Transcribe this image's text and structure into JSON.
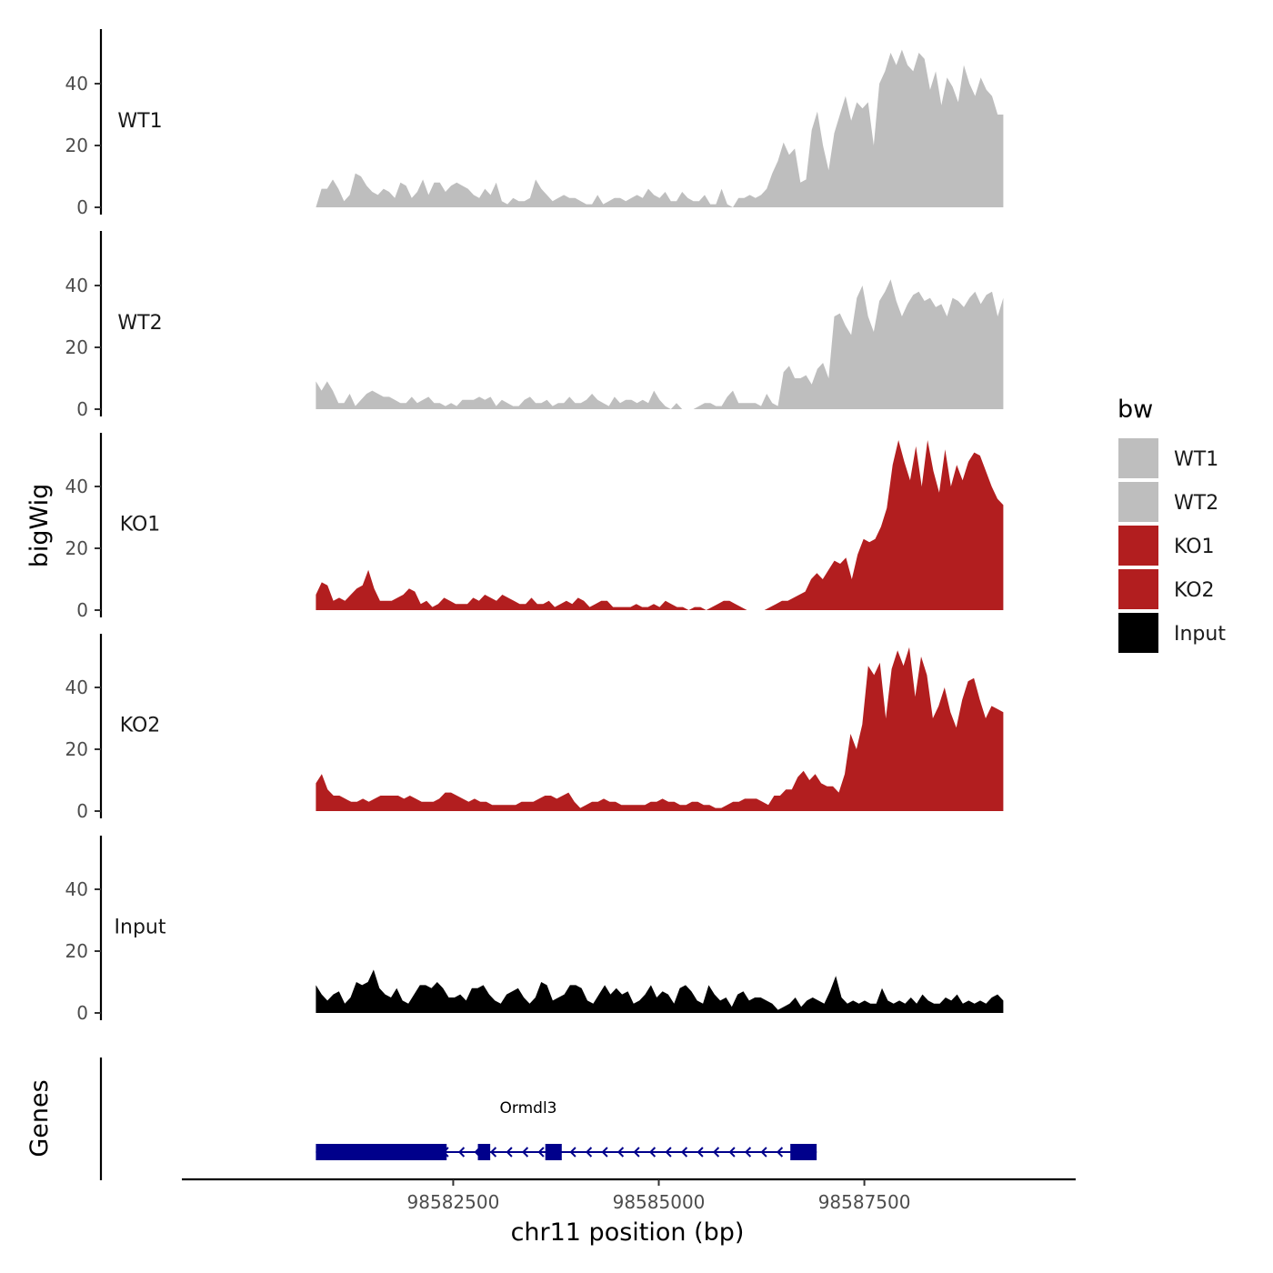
{
  "chart_data": {
    "type": "area",
    "title": "",
    "xlabel": "chr11 position (bp)",
    "ylabel": "bigWig",
    "genes_label": "Genes",
    "x_range": [
      98580830,
      98589190
    ],
    "xlim": [
      98579200,
      98590070
    ],
    "x_ticks": [
      98582500,
      98585000,
      98587500
    ],
    "x_tick_labels": [
      "98582500",
      "98585000",
      "98587500"
    ],
    "ylim": [
      0,
      58
    ],
    "y_ticks": [
      0,
      20,
      40
    ],
    "y_tick_labels": [
      "0",
      "20",
      "40"
    ],
    "series": [
      {
        "name": "WT1",
        "color": "#bebebe",
        "values": [
          0,
          6,
          6,
          9,
          6,
          2,
          4,
          11,
          10,
          7,
          5,
          4,
          6,
          5,
          3,
          8,
          7,
          3,
          5,
          9,
          4,
          8,
          8,
          5,
          7,
          8,
          7,
          6,
          4,
          3,
          6,
          4,
          8,
          2,
          1,
          3,
          2,
          2,
          3,
          9,
          6,
          4,
          2,
          3,
          4,
          3,
          3,
          2,
          1,
          1,
          4,
          1,
          2,
          3,
          3,
          2,
          3,
          4,
          3,
          6,
          4,
          3,
          5,
          2,
          2,
          5,
          3,
          2,
          2,
          4,
          1,
          1,
          6,
          1,
          0,
          3,
          3,
          4,
          3,
          4,
          6,
          11,
          15,
          21,
          17,
          19,
          8,
          9,
          25,
          31,
          20,
          12,
          24,
          30,
          36,
          28,
          34,
          32,
          34,
          20,
          40,
          44,
          50,
          46,
          51,
          46,
          44,
          50,
          48,
          38,
          44,
          33,
          42,
          39,
          34,
          46,
          40,
          36,
          42,
          38,
          36,
          30,
          30
        ]
      },
      {
        "name": "WT2",
        "color": "#bebebe",
        "values": [
          9,
          6,
          9,
          6,
          2,
          2,
          5,
          1,
          3,
          5,
          6,
          5,
          4,
          4,
          3,
          2,
          2,
          4,
          2,
          3,
          4,
          2,
          2,
          1,
          2,
          1,
          3,
          3,
          3,
          4,
          3,
          4,
          1,
          3,
          2,
          1,
          1,
          3,
          4,
          2,
          2,
          3,
          1,
          2,
          2,
          4,
          2,
          2,
          3,
          5,
          3,
          2,
          1,
          4,
          2,
          3,
          3,
          2,
          3,
          2,
          6,
          3,
          1,
          0,
          2,
          0,
          0,
          0,
          1,
          2,
          2,
          1,
          1,
          4,
          6,
          2,
          2,
          2,
          2,
          1,
          5,
          2,
          1,
          12,
          14,
          10,
          10,
          11,
          8,
          13,
          15,
          10,
          30,
          31,
          27,
          24,
          36,
          40,
          30,
          25,
          35,
          38,
          42,
          35,
          30,
          34,
          37,
          38,
          35,
          36,
          33,
          34,
          30,
          36,
          35,
          33,
          36,
          38,
          34,
          37,
          38,
          30,
          36
        ]
      },
      {
        "name": "KO1",
        "color": "#b21e1f",
        "values": [
          5,
          9,
          8,
          3,
          4,
          3,
          5,
          7,
          8,
          13,
          7,
          3,
          3,
          3,
          4,
          5,
          7,
          6,
          2,
          3,
          1,
          2,
          4,
          3,
          2,
          2,
          2,
          4,
          3,
          5,
          4,
          3,
          5,
          4,
          3,
          2,
          2,
          4,
          2,
          2,
          3,
          1,
          2,
          3,
          2,
          4,
          3,
          1,
          2,
          3,
          3,
          1,
          1,
          1,
          1,
          2,
          1,
          1,
          2,
          1,
          3,
          2,
          1,
          1,
          0,
          1,
          1,
          0,
          1,
          2,
          3,
          3,
          2,
          1,
          0,
          0,
          0,
          0,
          1,
          2,
          3,
          3,
          4,
          5,
          6,
          10,
          12,
          10,
          13,
          16,
          15,
          17,
          10,
          18,
          23,
          22,
          23,
          27,
          33,
          47,
          55,
          48,
          42,
          53,
          40,
          55,
          45,
          38,
          52,
          40,
          47,
          42,
          48,
          51,
          50,
          45,
          40,
          36,
          34
        ]
      },
      {
        "name": "KO2",
        "color": "#b21e1f",
        "values": [
          9,
          12,
          7,
          5,
          5,
          4,
          3,
          3,
          4,
          3,
          4,
          5,
          5,
          5,
          5,
          4,
          5,
          4,
          3,
          3,
          3,
          4,
          6,
          6,
          5,
          4,
          3,
          4,
          3,
          3,
          2,
          2,
          2,
          2,
          2,
          3,
          3,
          3,
          4,
          5,
          5,
          4,
          5,
          6,
          3,
          1,
          2,
          3,
          3,
          4,
          3,
          3,
          2,
          2,
          2,
          2,
          2,
          3,
          3,
          4,
          3,
          3,
          2,
          2,
          3,
          3,
          2,
          2,
          1,
          1,
          2,
          3,
          3,
          4,
          4,
          4,
          3,
          2,
          5,
          5,
          7,
          7,
          11,
          13,
          10,
          12,
          9,
          8,
          8,
          6,
          12,
          25,
          20,
          28,
          47,
          44,
          48,
          30,
          46,
          52,
          47,
          53,
          37,
          50,
          44,
          30,
          34,
          40,
          32,
          27,
          36,
          42,
          43,
          36,
          30,
          34,
          33,
          32
        ]
      },
      {
        "name": "Input",
        "color": "#000000",
        "values": [
          9,
          6,
          4,
          6,
          7,
          3,
          5,
          10,
          9,
          10,
          14,
          8,
          6,
          5,
          8,
          4,
          3,
          6,
          9,
          9,
          8,
          10,
          8,
          5,
          5,
          6,
          4,
          8,
          8,
          9,
          6,
          4,
          3,
          6,
          7,
          8,
          5,
          3,
          5,
          10,
          9,
          4,
          5,
          6,
          9,
          9,
          8,
          4,
          3,
          6,
          9,
          6,
          8,
          6,
          7,
          3,
          4,
          6,
          9,
          5,
          7,
          6,
          3,
          8,
          9,
          7,
          4,
          3,
          9,
          6,
          4,
          5,
          2,
          6,
          7,
          4,
          5,
          5,
          4,
          3,
          1,
          2,
          3,
          5,
          2,
          4,
          5,
          4,
          3,
          7,
          12,
          5,
          3,
          4,
          3,
          4,
          3,
          3,
          8,
          4,
          3,
          4,
          3,
          5,
          3,
          6,
          4,
          3,
          3,
          5,
          4,
          6,
          3,
          4,
          3,
          4,
          3,
          5,
          6,
          4
        ]
      }
    ],
    "legend": {
      "title": "bw",
      "entries": [
        "WT1",
        "WT2",
        "KO1",
        "KO2",
        "Input"
      ],
      "placement": "right"
    },
    "gene": {
      "name": "Ormdl3",
      "strand": "-",
      "start": 98580830,
      "end": 98586920,
      "exons": [
        [
          98580830,
          98582420
        ],
        [
          98582800,
          98582950
        ],
        [
          98583620,
          98583820
        ],
        [
          98586600,
          98586920
        ]
      ]
    }
  }
}
